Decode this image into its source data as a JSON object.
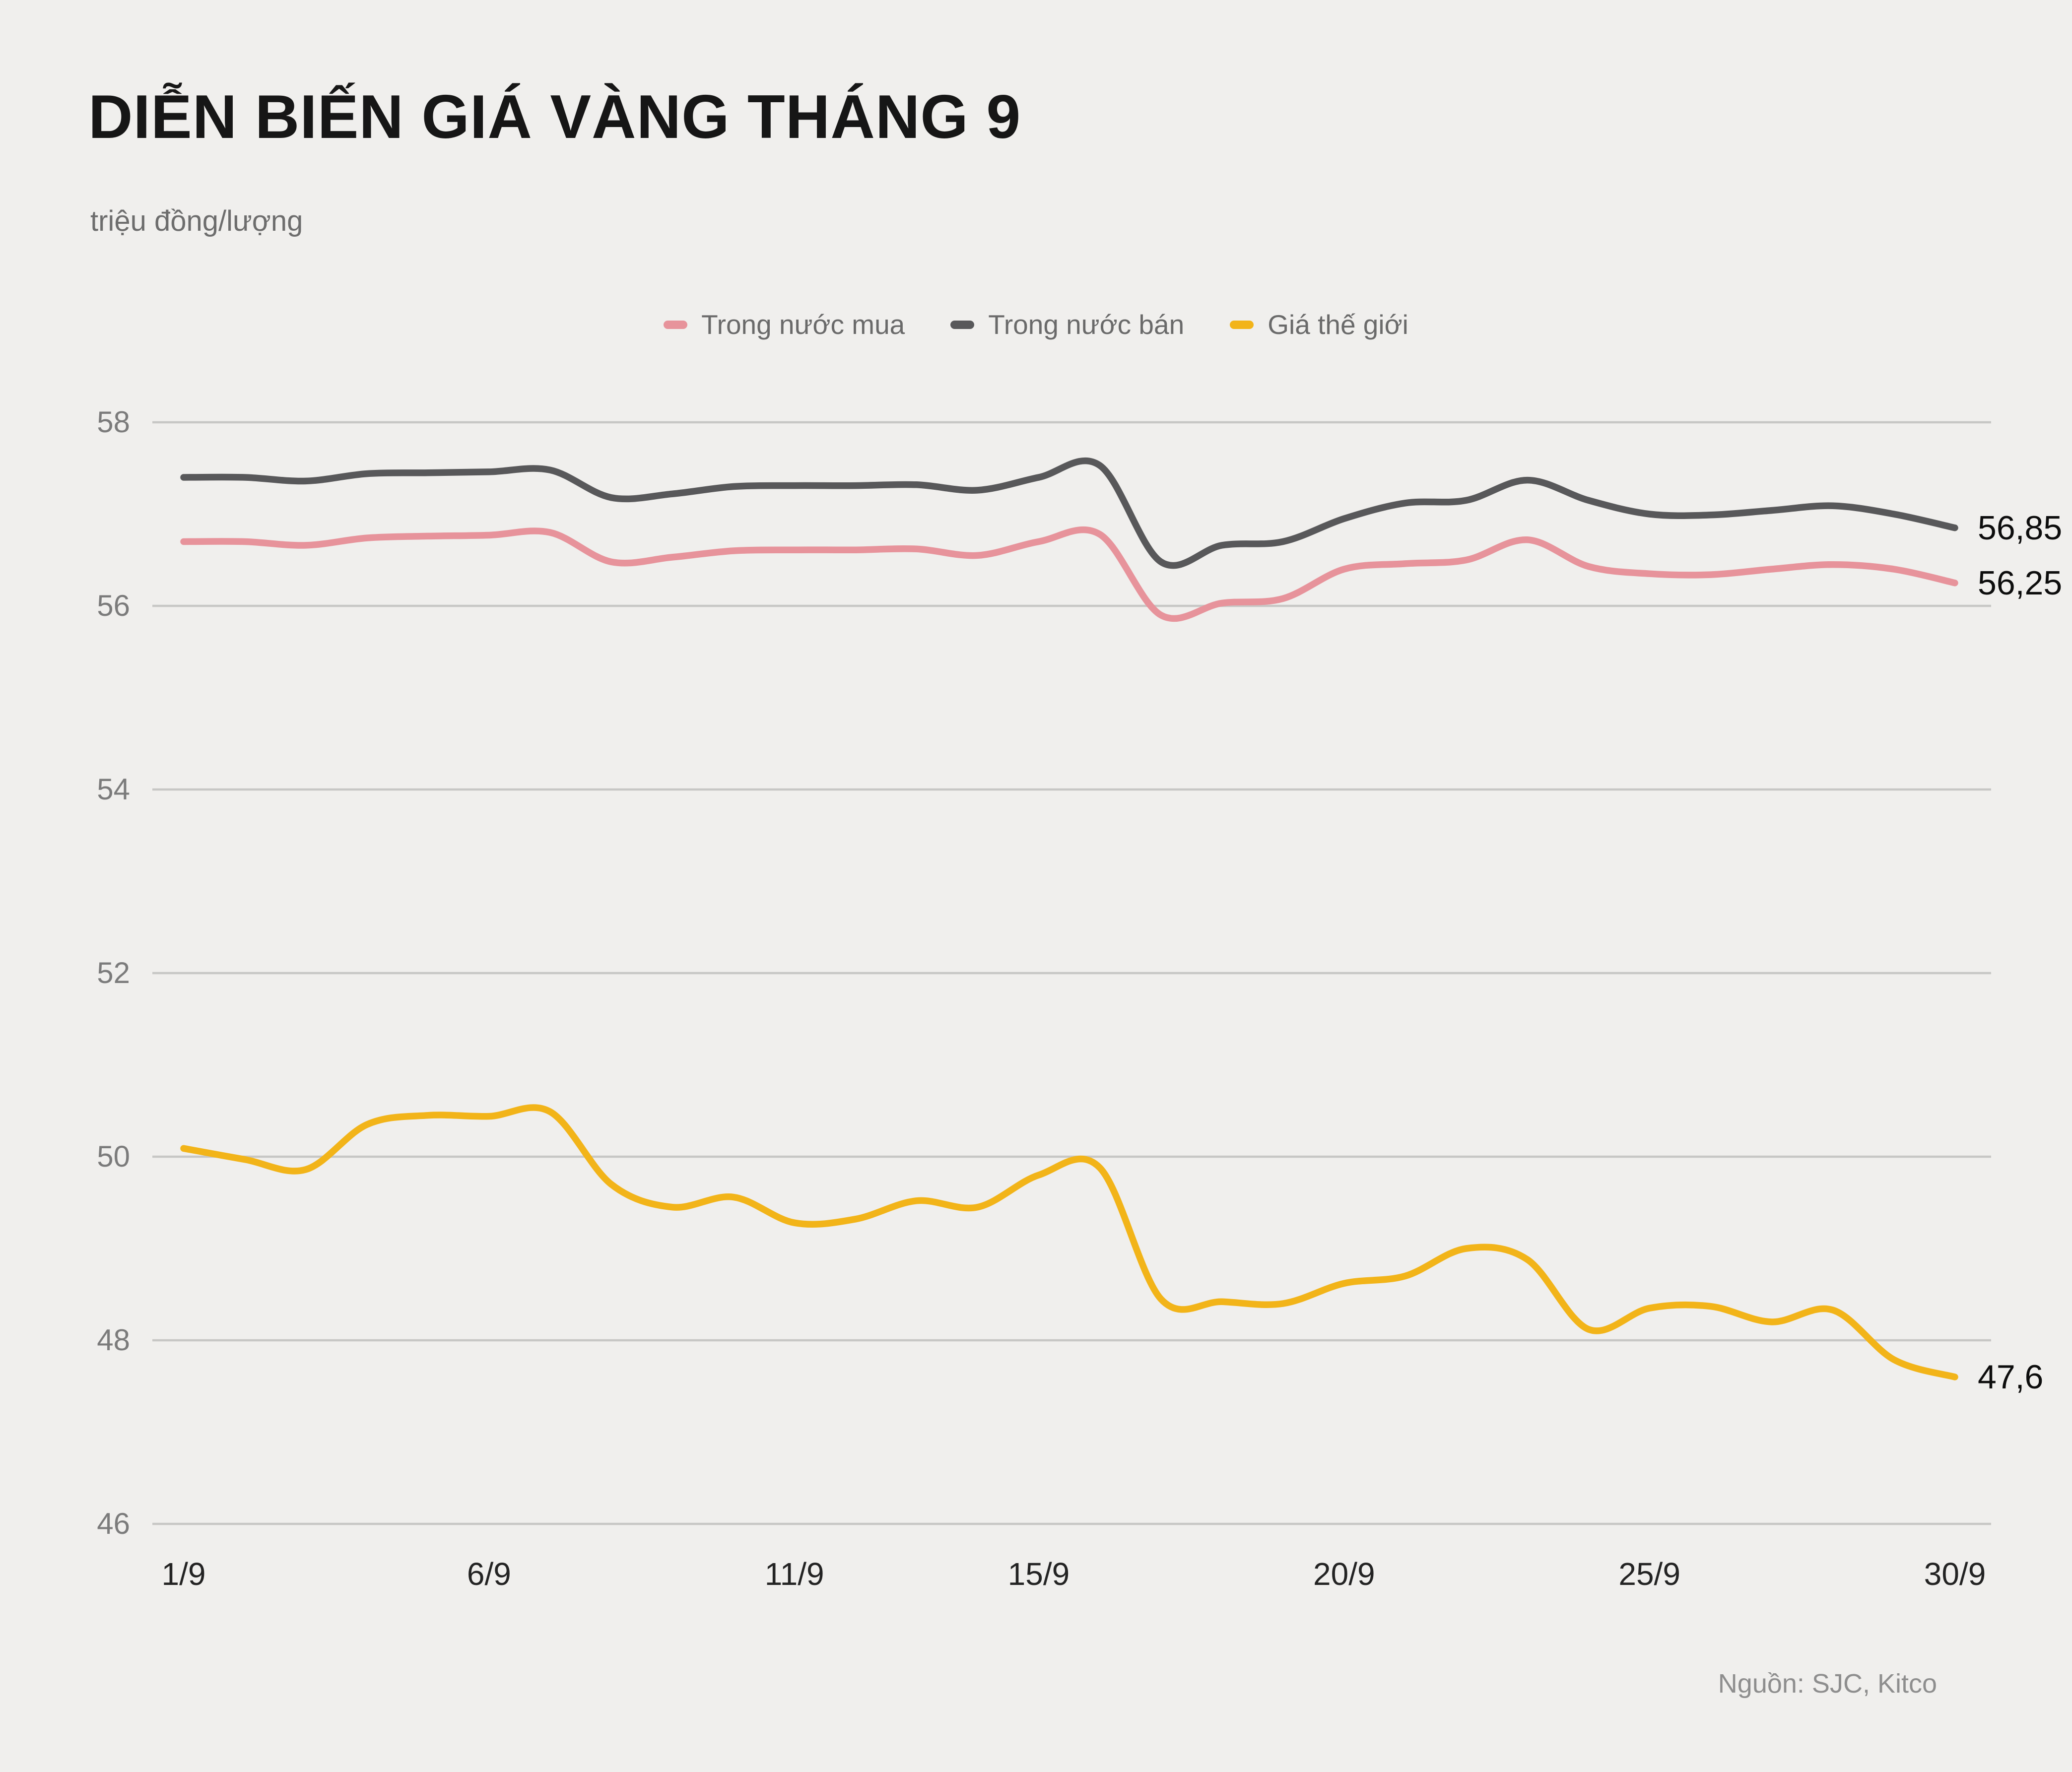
{
  "header": {
    "title": "DIỄN BIẾN GIÁ VÀNG THÁNG 9",
    "unit_label": "triệu đồng/lượng"
  },
  "colors": {
    "background": "#f0efed",
    "grid": "#c7c7c5",
    "buy_line": "#e7939b",
    "sell_line": "#58585a",
    "world_line": "#f2b419",
    "title_text": "#161616",
    "axis_text": "#7b7b7b",
    "x_axis_text": "#232323",
    "end_label_text": "#0d0d0d"
  },
  "chart_data": {
    "type": "line",
    "title": "DIỄN BIẾN GIÁ VÀNG THÁNG 9",
    "ylabel": "triệu đồng/lượng",
    "ylim": [
      46,
      58
    ],
    "grid": "horizontal",
    "legend_position": "top-center",
    "x_days": [
      1,
      2,
      3,
      4,
      5,
      6,
      7,
      8,
      9,
      10,
      11,
      12,
      13,
      14,
      15,
      16,
      17,
      18,
      19,
      20,
      21,
      22,
      23,
      24,
      25,
      26,
      27,
      28,
      29,
      30
    ],
    "xticks": [
      {
        "label": "1/9",
        "day": 1
      },
      {
        "label": "6/9",
        "day": 6
      },
      {
        "label": "11/9",
        "day": 11
      },
      {
        "label": "15/9",
        "day": 15
      },
      {
        "label": "20/9",
        "day": 20
      },
      {
        "label": "25/9",
        "day": 25
      },
      {
        "label": "30/9",
        "day": 30
      }
    ],
    "yticks": [
      {
        "label": "58",
        "value": 58
      },
      {
        "label": "56",
        "value": 56
      },
      {
        "label": "54",
        "value": 54
      },
      {
        "label": "52",
        "value": 52
      },
      {
        "label": "50",
        "value": 50
      },
      {
        "label": "48",
        "value": 48
      },
      {
        "label": "46",
        "value": 46
      }
    ],
    "series": [
      {
        "name": "Trong nước mua",
        "color": "#e7939b",
        "end_label": "56,25",
        "values": [
          56.7,
          56.7,
          56.66,
          56.74,
          56.76,
          56.77,
          56.8,
          56.48,
          56.53,
          56.6,
          56.61,
          56.61,
          56.62,
          56.55,
          56.7,
          56.78,
          55.9,
          56.03,
          56.08,
          56.4,
          56.46,
          56.5,
          56.72,
          56.43,
          56.35,
          56.34,
          56.4,
          56.45,
          56.4,
          56.25
        ]
      },
      {
        "name": "Trong nước bán",
        "color": "#58585a",
        "end_label": "56,85",
        "values": [
          57.4,
          57.4,
          57.36,
          57.44,
          57.45,
          57.46,
          57.48,
          57.18,
          57.22,
          57.3,
          57.31,
          57.31,
          57.32,
          57.26,
          57.4,
          57.53,
          56.48,
          56.66,
          56.7,
          56.95,
          57.12,
          57.15,
          57.37,
          57.15,
          57.0,
          56.99,
          57.04,
          57.09,
          57.0,
          56.85
        ]
      },
      {
        "name": "Giá thế giới",
        "color": "#f2b419",
        "end_label": "47,6",
        "values": [
          50.09,
          49.97,
          49.86,
          50.35,
          50.45,
          50.44,
          50.49,
          49.7,
          49.45,
          49.56,
          49.28,
          49.32,
          49.52,
          49.45,
          49.8,
          49.88,
          48.45,
          48.42,
          48.4,
          48.62,
          48.7,
          49.0,
          48.88,
          48.12,
          48.35,
          48.37,
          48.2,
          48.33,
          47.79,
          47.6
        ]
      }
    ]
  },
  "footer": {
    "source": "Nguồn: SJC, Kitco"
  }
}
